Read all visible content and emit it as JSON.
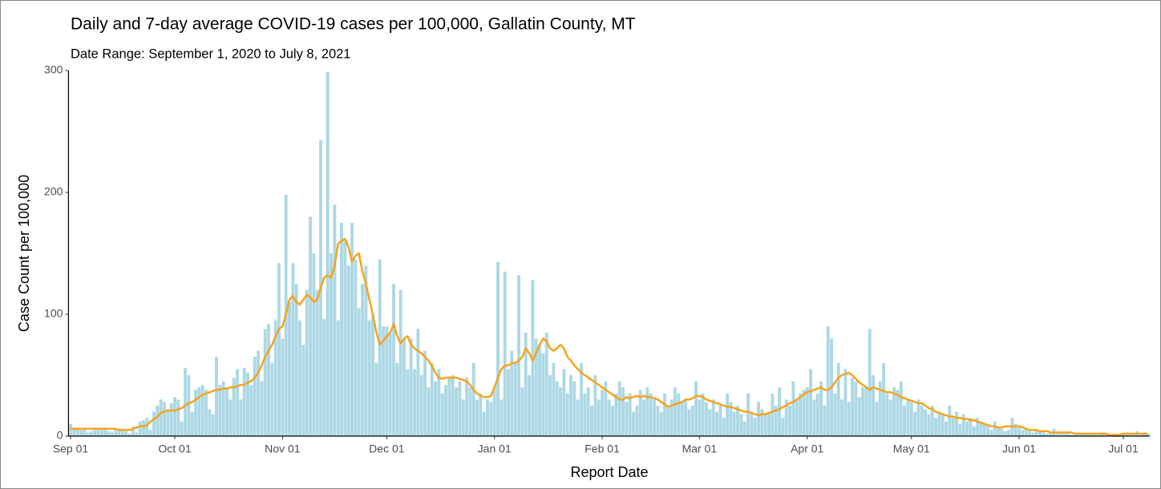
{
  "chart_data": {
    "type": "bar",
    "title": "Daily and 7-day average COVID-19 cases per 100,000, Gallatin County, MT",
    "subtitle": "Date Range: September 1, 2020 to July 8, 2021",
    "x_label": "Report Date",
    "y_label": "Case Count per 100,000",
    "xlim": [
      -0.6,
      310.6
    ],
    "xticks": [
      {
        "value": 0,
        "label": "Sep 01"
      },
      {
        "value": 30,
        "label": "Oct 01"
      },
      {
        "value": 61,
        "label": "Nov 01"
      },
      {
        "value": 91,
        "label": "Dec 01"
      },
      {
        "value": 122,
        "label": "Jan 01"
      },
      {
        "value": 153,
        "label": "Feb 01"
      },
      {
        "value": 181,
        "label": "Mar 01"
      },
      {
        "value": 212,
        "label": "Apr 01"
      },
      {
        "value": 242,
        "label": "May 01"
      },
      {
        "value": 273,
        "label": "Jun 01"
      },
      {
        "value": 303,
        "label": "Jul 01"
      }
    ],
    "ylim": [
      0,
      300
    ],
    "yticks": [
      0,
      100,
      200,
      300
    ],
    "grid": false,
    "x": [
      0,
      1,
      2,
      3,
      4,
      5,
      6,
      7,
      8,
      9,
      10,
      11,
      12,
      13,
      14,
      15,
      16,
      17,
      18,
      19,
      20,
      21,
      22,
      23,
      24,
      25,
      26,
      27,
      28,
      29,
      30,
      31,
      32,
      33,
      34,
      35,
      36,
      37,
      38,
      39,
      40,
      41,
      42,
      43,
      44,
      45,
      46,
      47,
      48,
      49,
      50,
      51,
      52,
      53,
      54,
      55,
      56,
      57,
      58,
      59,
      60,
      61,
      62,
      63,
      64,
      65,
      66,
      67,
      68,
      69,
      70,
      71,
      72,
      73,
      74,
      75,
      76,
      77,
      78,
      79,
      80,
      81,
      82,
      83,
      84,
      85,
      86,
      87,
      88,
      89,
      90,
      91,
      92,
      93,
      94,
      95,
      96,
      97,
      98,
      99,
      100,
      101,
      102,
      103,
      104,
      105,
      106,
      107,
      108,
      109,
      110,
      111,
      112,
      113,
      114,
      115,
      116,
      117,
      118,
      119,
      120,
      121,
      122,
      123,
      124,
      125,
      126,
      127,
      128,
      129,
      130,
      131,
      132,
      133,
      134,
      135,
      136,
      137,
      138,
      139,
      140,
      141,
      142,
      143,
      144,
      145,
      146,
      147,
      148,
      149,
      150,
      151,
      152,
      153,
      154,
      155,
      156,
      157,
      158,
      159,
      160,
      161,
      162,
      163,
      164,
      165,
      166,
      167,
      168,
      169,
      170,
      171,
      172,
      173,
      174,
      175,
      176,
      177,
      178,
      179,
      180,
      181,
      182,
      183,
      184,
      185,
      186,
      187,
      188,
      189,
      190,
      191,
      192,
      193,
      194,
      195,
      196,
      197,
      198,
      199,
      200,
      201,
      202,
      203,
      204,
      205,
      206,
      207,
      208,
      209,
      210,
      211,
      212,
      213,
      214,
      215,
      216,
      217,
      218,
      219,
      220,
      221,
      222,
      223,
      224,
      225,
      226,
      227,
      228,
      229,
      230,
      231,
      232,
      233,
      234,
      235,
      236,
      237,
      238,
      239,
      240,
      241,
      242,
      243,
      244,
      245,
      246,
      247,
      248,
      249,
      250,
      251,
      252,
      253,
      254,
      255,
      256,
      257,
      258,
      259,
      260,
      261,
      262,
      263,
      264,
      265,
      266,
      267,
      268,
      269,
      270,
      271,
      272,
      273,
      274,
      275,
      276,
      277,
      278,
      279,
      280,
      281,
      282,
      283,
      284,
      285,
      286,
      287,
      288,
      289,
      290,
      291,
      292,
      293,
      294,
      295,
      296,
      297,
      298,
      299,
      300,
      301,
      302,
      303,
      304,
      305,
      306,
      307,
      308,
      309,
      310
    ],
    "series": [
      {
        "type": "bar",
        "color": "#add8e6",
        "values": [
          10,
          6,
          7,
          5,
          6,
          3,
          4,
          7,
          6,
          5,
          7,
          4,
          3,
          5,
          6,
          5,
          4,
          2,
          8,
          3,
          12,
          13,
          15,
          5,
          20,
          25,
          30,
          28,
          22,
          27,
          32,
          30,
          12,
          56,
          50,
          20,
          38,
          40,
          42,
          38,
          22,
          18,
          65,
          42,
          45,
          40,
          30,
          48,
          55,
          30,
          56,
          52,
          42,
          65,
          70,
          45,
          88,
          92,
          60,
          95,
          142,
          80,
          198,
          110,
          142,
          125,
          95,
          75,
          120,
          180,
          150,
          120,
          243,
          96,
          299,
          150,
          190,
          95,
          175,
          160,
          140,
          175,
          145,
          105,
          125,
          140,
          95,
          100,
          60,
          145,
          90,
          90,
          85,
          125,
          60,
          120,
          80,
          55,
          80,
          55,
          88,
          50,
          70,
          40,
          60,
          45,
          55,
          35,
          42,
          48,
          50,
          40,
          45,
          30,
          48,
          40,
          60,
          30,
          35,
          20,
          30,
          28,
          40,
          143,
          30,
          135,
          55,
          70,
          60,
          132,
          40,
          85,
          50,
          128,
          80,
          75,
          68,
          85,
          50,
          60,
          45,
          40,
          55,
          35,
          50,
          45,
          30,
          60,
          35,
          40,
          25,
          50,
          30,
          38,
          45,
          30,
          25,
          35,
          45,
          40,
          28,
          35,
          20,
          25,
          38,
          30,
          40,
          35,
          30,
          25,
          20,
          35,
          25,
          30,
          40,
          35,
          28,
          30,
          22,
          25,
          45,
          30,
          35,
          28,
          22,
          30,
          20,
          25,
          15,
          35,
          28,
          20,
          25,
          18,
          12,
          35,
          20,
          15,
          28,
          22,
          18,
          20,
          35,
          25,
          40,
          15,
          30,
          25,
          45,
          30,
          35,
          38,
          40,
          55,
          30,
          35,
          45,
          25,
          90,
          80,
          35,
          60,
          30,
          55,
          28,
          48,
          45,
          32,
          40,
          40,
          88,
          50,
          28,
          45,
          60,
          35,
          30,
          40,
          38,
          45,
          25,
          30,
          28,
          20,
          30,
          25,
          22,
          18,
          25,
          15,
          20,
          18,
          12,
          25,
          15,
          20,
          10,
          18,
          12,
          15,
          8,
          15,
          12,
          10,
          8,
          5,
          12,
          8,
          6,
          4,
          5,
          15,
          10,
          8,
          5,
          6,
          4,
          3,
          5,
          4,
          3,
          2,
          3,
          6,
          2,
          3,
          2,
          4,
          1,
          2,
          3,
          2,
          1,
          2,
          1,
          2,
          1,
          3,
          1,
          2,
          1,
          2,
          1,
          2,
          3,
          1,
          2,
          4,
          1,
          3,
          2
        ]
      },
      {
        "type": "line",
        "color": "#f5a41f",
        "values": [
          6,
          6,
          6,
          6,
          6,
          6,
          6,
          6,
          6,
          6,
          6,
          6,
          6,
          6,
          5,
          5,
          5,
          5,
          6,
          7,
          8,
          8,
          9,
          12,
          14,
          16,
          19,
          20,
          21,
          21,
          21,
          22,
          23,
          25,
          27,
          28,
          30,
          32,
          34,
          35,
          36,
          37,
          38,
          38,
          39,
          39,
          40,
          40,
          41,
          42,
          42,
          44,
          45,
          48,
          52,
          58,
          65,
          70,
          75,
          82,
          88,
          90,
          100,
          112,
          115,
          110,
          108,
          112,
          116,
          114,
          110,
          112,
          122,
          130,
          132,
          130,
          140,
          158,
          160,
          162,
          155,
          143,
          148,
          150,
          135,
          125,
          112,
          100,
          85,
          75,
          78,
          82,
          85,
          92,
          82,
          76,
          80,
          82,
          75,
          72,
          70,
          68,
          65,
          62,
          58,
          52,
          48,
          47,
          48,
          48,
          48,
          48,
          47,
          46,
          45,
          42,
          38,
          35,
          33,
          32,
          32,
          33,
          40,
          48,
          55,
          58,
          58,
          60,
          60,
          62,
          65,
          72,
          68,
          62,
          68,
          75,
          80,
          78,
          72,
          70,
          72,
          75,
          72,
          65,
          62,
          58,
          55,
          52,
          50,
          48,
          46,
          44,
          42,
          40,
          38,
          36,
          34,
          32,
          30,
          30,
          32,
          31,
          32,
          33,
          32,
          33,
          32,
          32,
          31,
          30,
          28,
          26,
          24,
          25,
          26,
          27,
          28,
          30,
          30,
          31,
          33,
          33,
          32,
          30,
          29,
          28,
          27,
          26,
          25,
          24,
          24,
          23,
          22,
          21,
          20,
          20,
          19,
          18,
          17,
          18,
          18,
          19,
          20,
          21,
          22,
          24,
          25,
          27,
          28,
          30,
          32,
          34,
          36,
          37,
          38,
          39,
          40,
          38,
          38,
          40,
          44,
          48,
          50,
          51,
          52,
          50,
          47,
          44,
          42,
          40,
          38,
          40,
          39,
          38,
          37,
          36,
          36,
          35,
          34,
          32,
          31,
          30,
          29,
          28,
          27,
          27,
          25,
          23,
          22,
          20,
          19,
          18,
          17,
          16,
          16,
          15,
          15,
          14,
          14,
          13,
          13,
          12,
          11,
          10,
          9,
          8,
          8,
          7,
          7,
          8,
          8,
          8,
          8,
          8,
          7,
          6,
          5,
          5,
          5,
          4,
          4,
          4,
          3,
          3,
          3,
          3,
          3,
          3,
          3,
          2,
          2,
          2,
          2,
          2,
          2,
          2,
          2,
          2,
          2,
          1,
          1,
          1,
          1,
          2,
          2,
          2,
          2,
          2,
          2,
          2,
          2
        ]
      }
    ]
  }
}
